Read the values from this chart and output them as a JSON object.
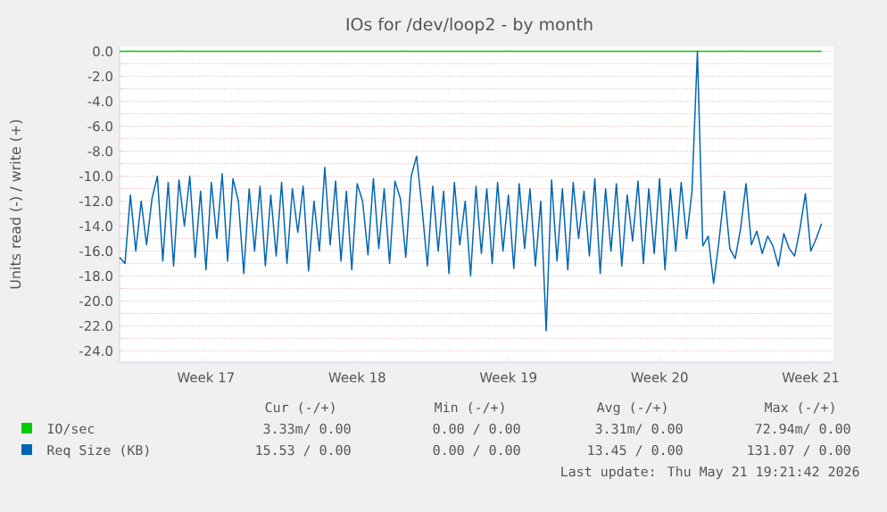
{
  "chart_data": {
    "type": "line",
    "title": "IOs for /dev/loop2 - by month",
    "ylabel": "Units read (-) / write (+)",
    "ylim": [
      -24.9,
      0.4
    ],
    "yticks": [
      {
        "value": 0,
        "label": "0.0"
      },
      {
        "value": -1,
        "label": null
      },
      {
        "value": -2,
        "label": "-2.0"
      },
      {
        "value": -3,
        "label": null
      },
      {
        "value": -4,
        "label": "-4.0"
      },
      {
        "value": -5,
        "label": null
      },
      {
        "value": -6,
        "label": "-6.0"
      },
      {
        "value": -7,
        "label": null
      },
      {
        "value": -8,
        "label": "-8.0"
      },
      {
        "value": -9,
        "label": null
      },
      {
        "value": -10,
        "label": "-10.0"
      },
      {
        "value": -11,
        "label": null
      },
      {
        "value": -12,
        "label": "-12.0"
      },
      {
        "value": -13,
        "label": null
      },
      {
        "value": -14,
        "label": "-14.0"
      },
      {
        "value": -15,
        "label": null
      },
      {
        "value": -16,
        "label": "-16.0"
      },
      {
        "value": -17,
        "label": null
      },
      {
        "value": -18,
        "label": "-18.0"
      },
      {
        "value": -19,
        "label": null
      },
      {
        "value": -20,
        "label": "-20.0"
      },
      {
        "value": -21,
        "label": null
      },
      {
        "value": -22,
        "label": "-22.0"
      },
      {
        "value": -23,
        "label": null
      },
      {
        "value": -24,
        "label": "-24.0"
      }
    ],
    "grid": "y",
    "legend": "bottom left",
    "marker": "none",
    "line_style": "solid",
    "categories": [
      null,
      null,
      null,
      null,
      null,
      null,
      null,
      null,
      null,
      null,
      null,
      null,
      null,
      null,
      null,
      null,
      "Week 17",
      null,
      null,
      null,
      null,
      null,
      null,
      null,
      null,
      null,
      null,
      null,
      null,
      null,
      null,
      null,
      null,
      null,
      null,
      null,
      null,
      null,
      null,
      null,
      null,
      null,
      null,
      null,
      "Week 18",
      null,
      null,
      null,
      null,
      null,
      null,
      null,
      null,
      null,
      null,
      null,
      null,
      null,
      null,
      null,
      null,
      null,
      null,
      null,
      null,
      null,
      null,
      null,
      null,
      null,
      null,
      null,
      "Week 19",
      null,
      null,
      null,
      null,
      null,
      null,
      null,
      null,
      null,
      null,
      null,
      null,
      null,
      null,
      null,
      null,
      null,
      null,
      null,
      null,
      null,
      null,
      null,
      null,
      null,
      null,
      null,
      "Week 20",
      null,
      null,
      null,
      null,
      null,
      null,
      null,
      null,
      null,
      null,
      null,
      null,
      null,
      null,
      null,
      null,
      null,
      null,
      null,
      null,
      null,
      null,
      null,
      null,
      null,
      null,
      null,
      "Week 21",
      null,
      null
    ],
    "series": [
      {
        "name": "IO/sec",
        "color": "#00cc00",
        "values": [
          0,
          0,
          0,
          0,
          0,
          0,
          0,
          0,
          0,
          0,
          0,
          0,
          0,
          0,
          0,
          0,
          0,
          0,
          0,
          0,
          0,
          0,
          0,
          0,
          0,
          0,
          0,
          0,
          0,
          0,
          0,
          0,
          0,
          0,
          0,
          0,
          0,
          0,
          0,
          0,
          0,
          0,
          0,
          0,
          0,
          0,
          0,
          0,
          0,
          0,
          0,
          0,
          0,
          0,
          0,
          0,
          0,
          0,
          0,
          0,
          0,
          0,
          0,
          0,
          0,
          0,
          0,
          0,
          0,
          0,
          0,
          0,
          0,
          0,
          0,
          0,
          0,
          0,
          0,
          0,
          0,
          0,
          0,
          0,
          0,
          0,
          0,
          0,
          0,
          0,
          0,
          0,
          0,
          0,
          0,
          0,
          0,
          0,
          0,
          0,
          0,
          0,
          0,
          0,
          0,
          0,
          0,
          0,
          0,
          0,
          0,
          0,
          0,
          0,
          0,
          0,
          0,
          0,
          0,
          0,
          0,
          0,
          0,
          0,
          0,
          0,
          0,
          0,
          0,
          0,
          0
        ]
      },
      {
        "name": "Req Size (KB)",
        "color": "#0066b3",
        "values": [
          -16.5,
          -17.0,
          -11.5,
          -16.0,
          -12.0,
          -15.5,
          -11.8,
          -10.0,
          -16.8,
          -10.5,
          -17.2,
          -10.3,
          -14.0,
          -10.0,
          -16.5,
          -11.2,
          -17.5,
          -10.5,
          -15.0,
          -9.8,
          -16.8,
          -10.2,
          -12.0,
          -17.8,
          -11.0,
          -16.0,
          -10.8,
          -17.2,
          -11.5,
          -16.4,
          -10.5,
          -17.0,
          -11.0,
          -14.5,
          -10.8,
          -17.6,
          -12.0,
          -16.0,
          -9.3,
          -15.5,
          -10.4,
          -16.8,
          -11.2,
          -17.5,
          -10.6,
          -12.0,
          -16.3,
          -10.2,
          -15.8,
          -11.0,
          -17.0,
          -10.4,
          -11.8,
          -16.5,
          -10.0,
          -8.4,
          -12.5,
          -17.2,
          -10.8,
          -16.0,
          -11.2,
          -17.8,
          -10.5,
          -15.5,
          -12.0,
          -18.0,
          -10.8,
          -16.2,
          -11.0,
          -17.0,
          -10.5,
          -16.0,
          -11.5,
          -17.4,
          -10.6,
          -15.8,
          -11.0,
          -17.2,
          -12.0,
          -22.4,
          -10.3,
          -16.8,
          -11.0,
          -17.5,
          -10.5,
          -15.0,
          -11.2,
          -16.4,
          -10.2,
          -17.8,
          -11.0,
          -16.0,
          -10.6,
          -17.2,
          -11.5,
          -15.2,
          -10.4,
          -17.0,
          -11.0,
          -16.2,
          -10.2,
          -17.5,
          -11.0,
          -16.0,
          -10.5,
          -15.0,
          -11.2,
          0.0,
          -15.6,
          -14.8,
          -18.6,
          -15.2,
          -11.2,
          -15.8,
          -16.6,
          -14.2,
          -10.6,
          -15.5,
          -14.4,
          -16.2,
          -14.8,
          -15.6,
          -17.2,
          -14.6,
          -15.8,
          -16.4,
          -14.2,
          -11.4,
          -16.0,
          -15.0,
          -13.8
        ]
      }
    ],
    "annotations": [
      "Cur (-/+)",
      "Min (-/+)",
      "Avg (-/+)",
      "Max (-/+)",
      "3.33m/ 0.00",
      "0.00 / 0.00",
      "3.31m/ 0.00",
      "72.94m/ 0.00",
      "15.53 / 0.00",
      "0.00 / 0.00",
      "13.45 / 0.00",
      "131.07 / 0.00",
      "Last update: Thu May 21 19:21:42 2026"
    ]
  }
}
